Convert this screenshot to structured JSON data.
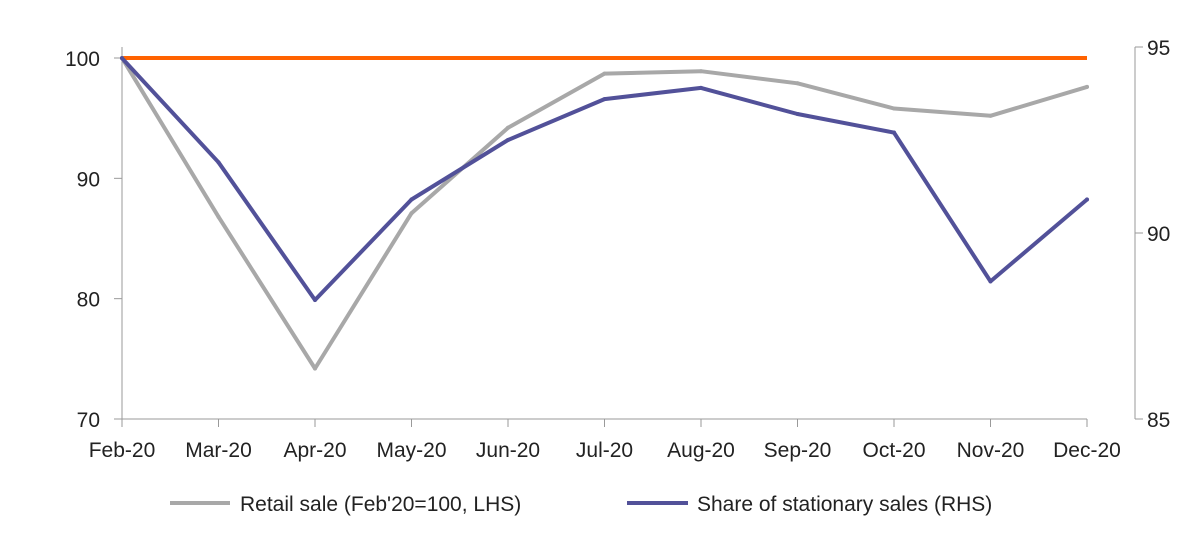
{
  "chart_data": {
    "type": "line",
    "categories": [
      "Feb-20",
      "Mar-20",
      "Apr-20",
      "May-20",
      "Jun-20",
      "Jul-20",
      "Aug-20",
      "Sep-20",
      "Oct-20",
      "Nov-20",
      "Dec-20"
    ],
    "y_left": {
      "ylim": [
        70,
        100
      ],
      "ticks": [
        70,
        80,
        90,
        100
      ]
    },
    "y_right": {
      "ylim": [
        85,
        95
      ],
      "ticks": [
        85,
        90,
        95
      ]
    },
    "reference_line": {
      "axis": "left",
      "value": 100,
      "color": "#FF6200"
    },
    "series": [
      {
        "name": "Retail sale (Feb'20=100, LHS)",
        "axis": "left",
        "color": "#A8A8A8",
        "values": [
          100,
          86.8,
          74.2,
          87.1,
          94.2,
          98.7,
          98.9,
          97.9,
          95.8,
          95.2,
          97.6
        ]
      },
      {
        "name": "Share of stationary sales (RHS)",
        "axis": "right",
        "color": "#525199",
        "values": [
          94.7,
          91.9,
          88.2,
          90.9,
          92.5,
          93.6,
          93.9,
          93.2,
          92.7,
          88.7,
          90.9
        ]
      }
    ],
    "legend_position": "bottom"
  }
}
